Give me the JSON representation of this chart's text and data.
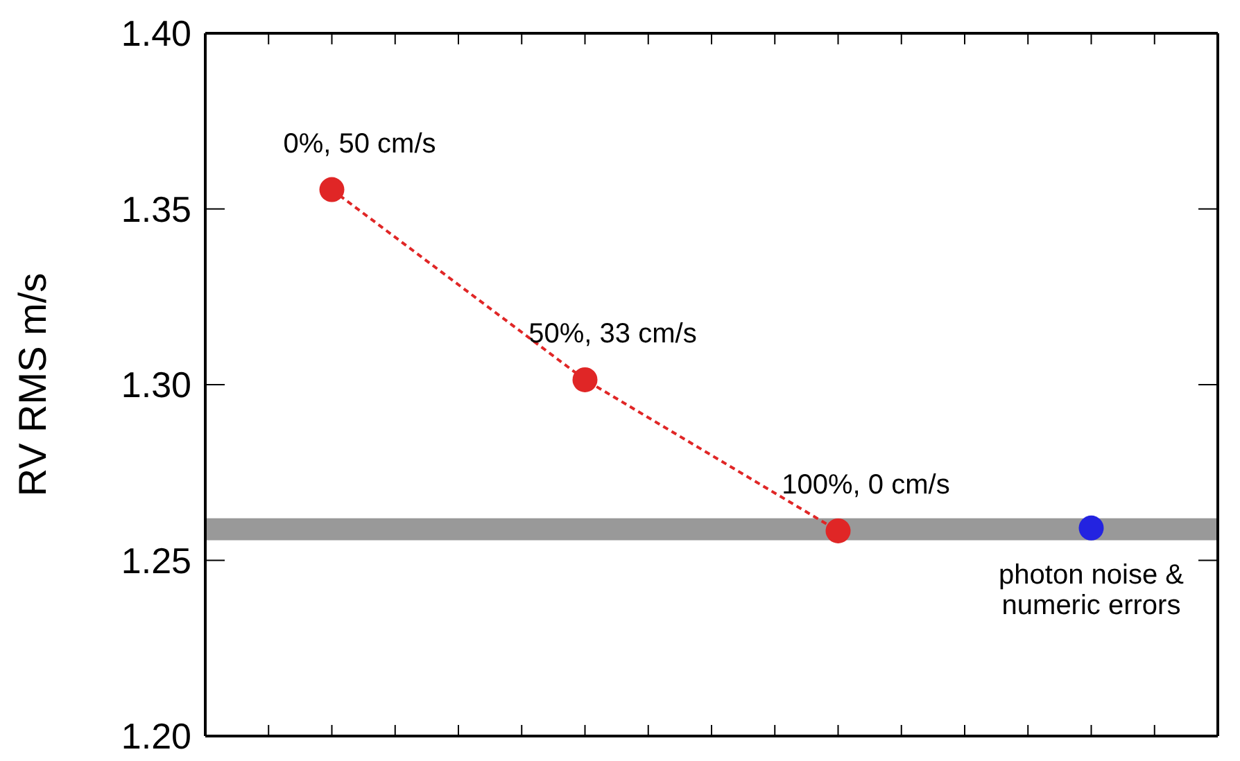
{
  "chart_data": {
    "type": "line",
    "ylabel": "RV RMS m/s",
    "categories": [
      null,
      null,
      null,
      null
    ],
    "ylim": [
      1.2,
      1.4
    ],
    "yticks": [
      {
        "value": 1.2,
        "label": "1.20"
      },
      {
        "value": 1.25,
        "label": "1.25"
      },
      {
        "value": 1.3,
        "label": "1.30"
      },
      {
        "value": 1.35,
        "label": "1.35"
      },
      {
        "value": 1.4,
        "label": "1.40"
      }
    ],
    "tick_labels": "y",
    "marker": "circle",
    "grid": false,
    "legend": false,
    "series": [
      {
        "line_style": "dashed",
        "color": "#e02626",
        "values": [
          1.3555,
          1.3014,
          1.2584,
          null
        ]
      },
      {
        "type": "scatter",
        "color": "#2323e0",
        "values": [
          null,
          null,
          null,
          1.2592
        ]
      }
    ],
    "annotations": [
      "0%, 50 cm/s",
      "50%, 33 cm/s",
      "100%, 0 cm/s",
      "photon noise &\nnumeric errors"
    ],
    "bands": [
      {
        "axis": "y",
        "from": 1.2557,
        "to": 1.262,
        "color": "#999999"
      }
    ]
  }
}
